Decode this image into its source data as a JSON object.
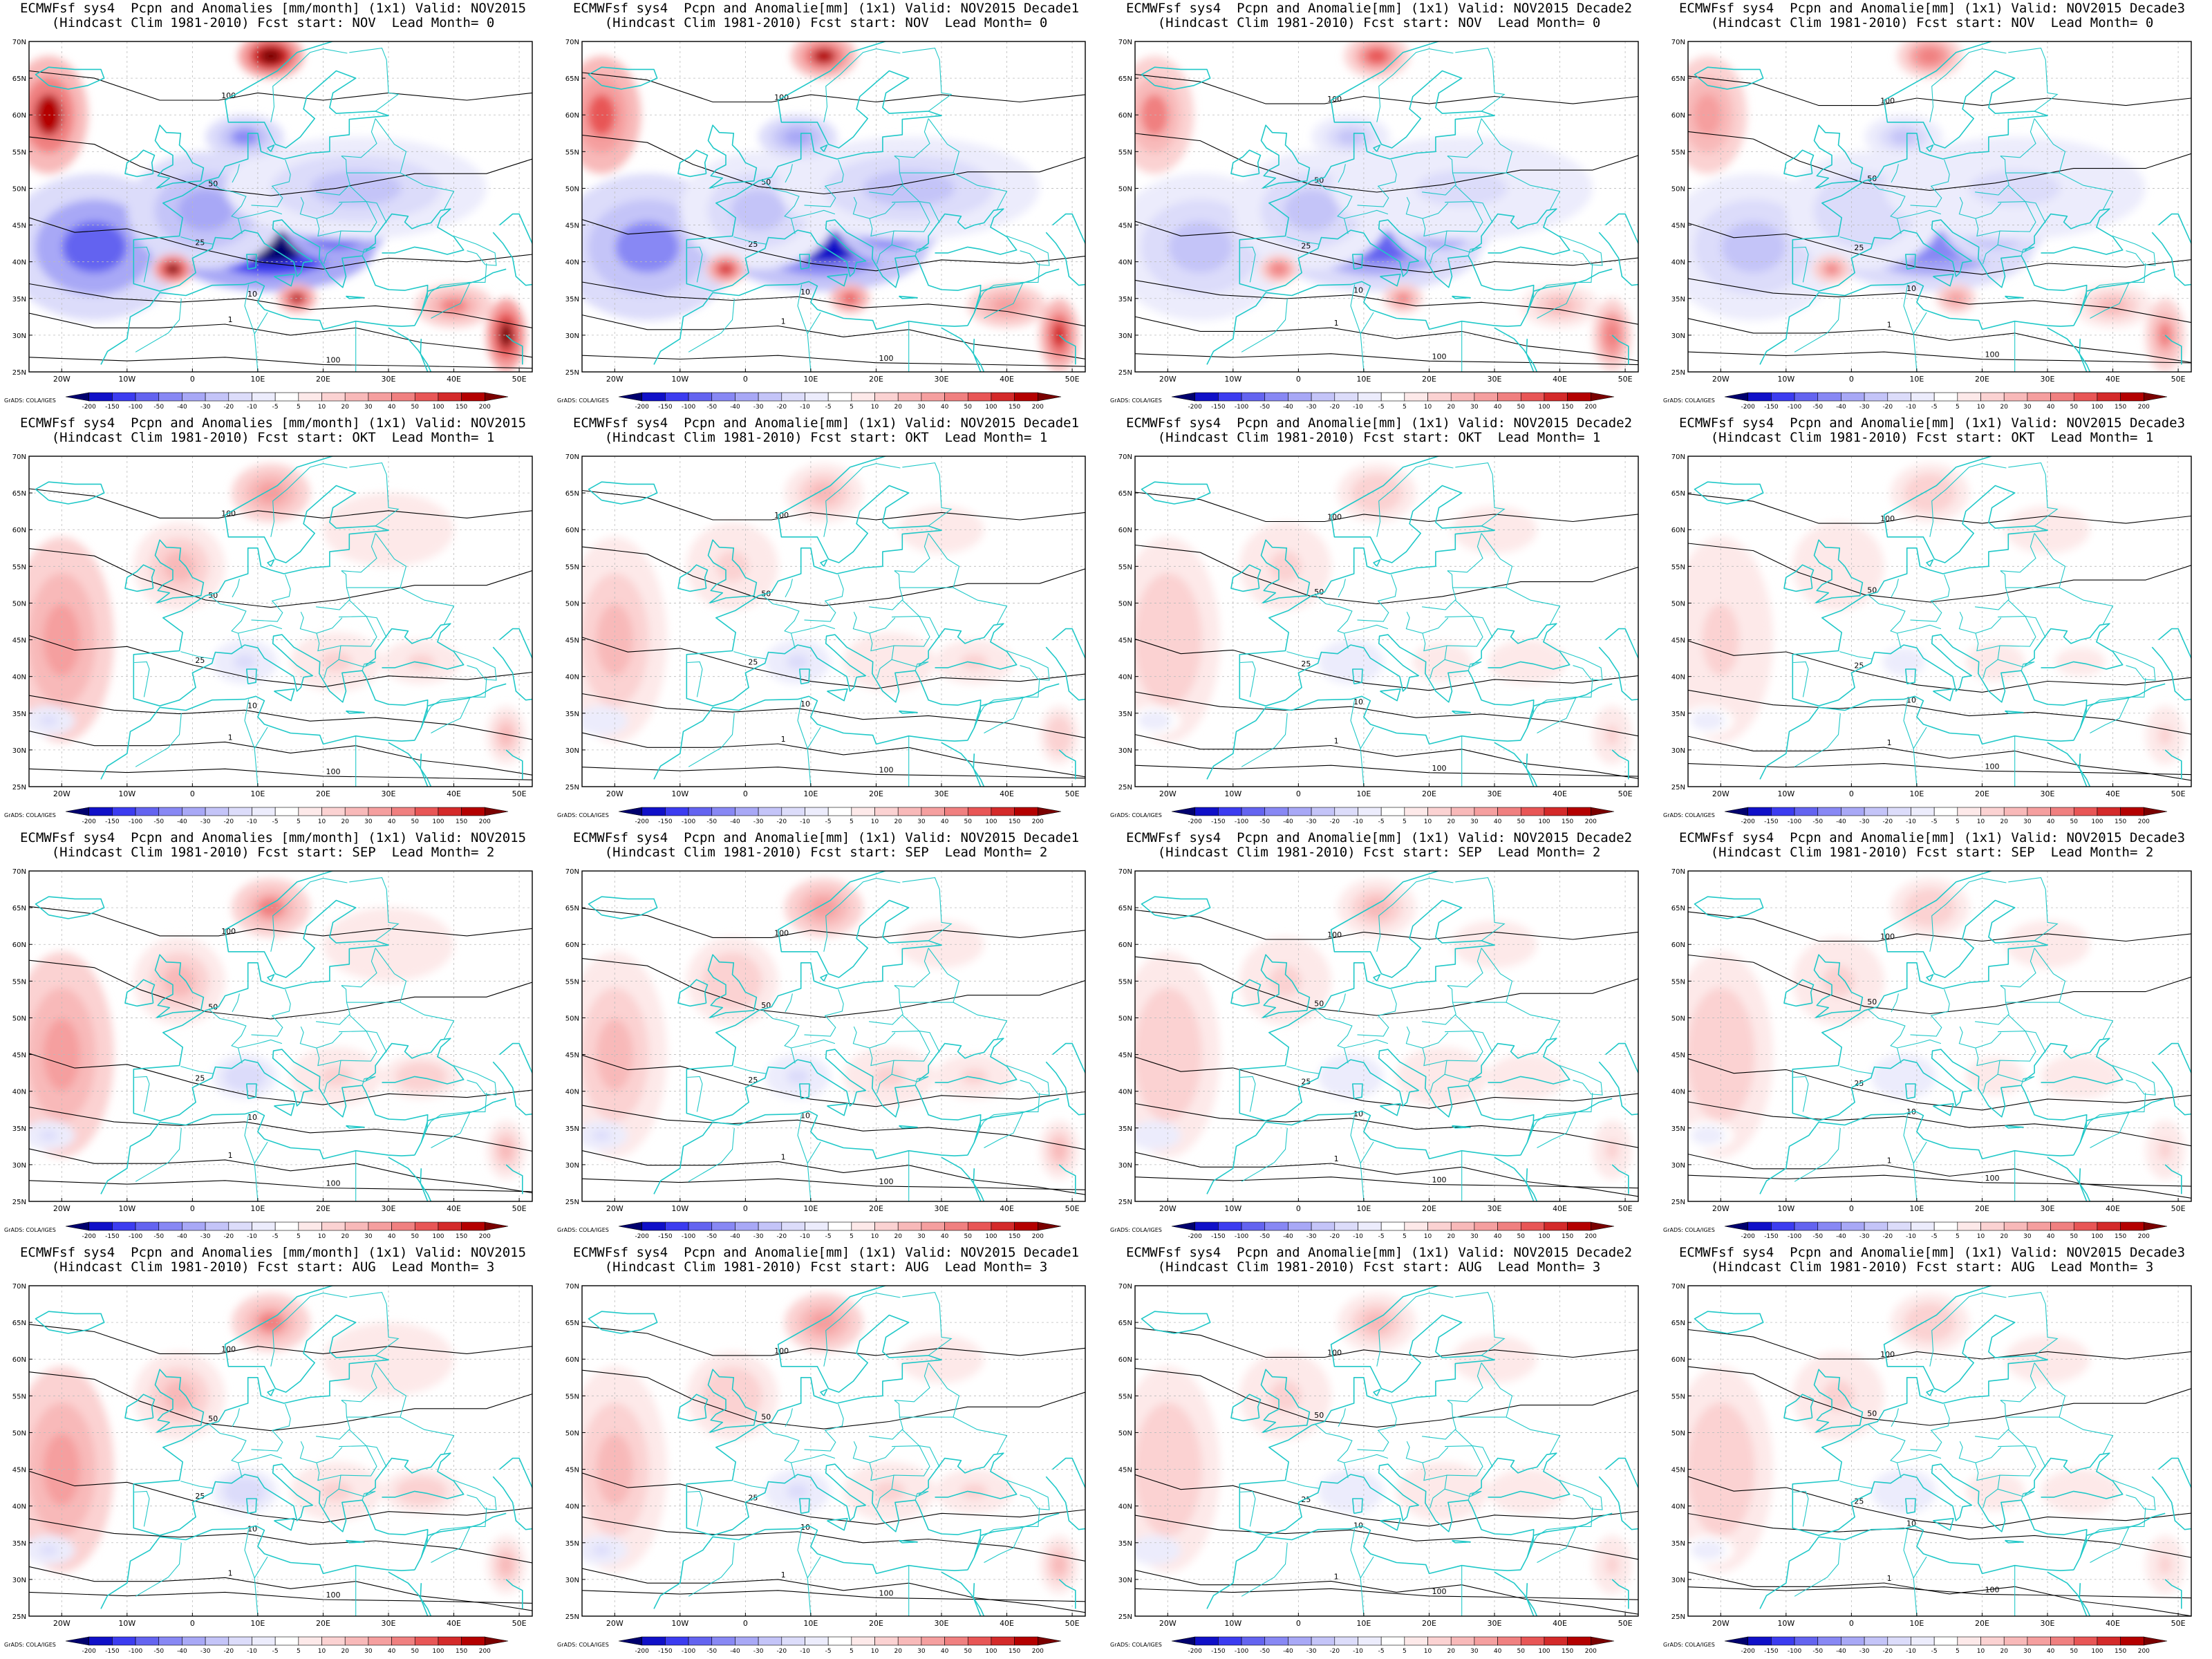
{
  "figure": {
    "colorbar_ticks": [
      "-200",
      "-150",
      "-100",
      "-50",
      "-40",
      "-30",
      "-20",
      "-10",
      "-5",
      "5",
      "10",
      "20",
      "30",
      "40",
      "50",
      "100",
      "150",
      "200"
    ],
    "colorbar_colors": [
      "#00006e",
      "#1010c8",
      "#3c3cf0",
      "#6464f0",
      "#8888f4",
      "#a8a8f6",
      "#c4c4f8",
      "#dcdcfa",
      "#ececfc",
      "#ffffff",
      "#fde9e9",
      "#fbd2d2",
      "#f8b9b9",
      "#f59f9f",
      "#f08080",
      "#e85656",
      "#d42a2a",
      "#b40000",
      "#7a0000"
    ],
    "lon_labels": [
      "20W",
      "10W",
      "0",
      "10E",
      "20E",
      "30E",
      "40E",
      "50E"
    ],
    "lat_labels": [
      "70N",
      "65N",
      "60N",
      "55N",
      "50N",
      "45N",
      "40N",
      "35N",
      "30N",
      "25N"
    ],
    "credit": "GrADS: COLA/IGES",
    "contour_labels": [
      "1",
      "10",
      "25",
      "50",
      "100"
    ],
    "coast_color": "#20c8c8",
    "contour_color": "#000000"
  },
  "rows": [
    {
      "fcst_start": "NOV",
      "lead_month": "0",
      "intensity": 1.0,
      "sign": -1
    },
    {
      "fcst_start": "OKT",
      "lead_month": "1",
      "intensity": 0.55,
      "sign": 1
    },
    {
      "fcst_start": "SEP",
      "lead_month": "2",
      "intensity": 0.6,
      "sign": 1
    },
    {
      "fcst_start": "AUG",
      "lead_month": "3",
      "intensity": 0.6,
      "sign": 1
    }
  ],
  "cols": [
    {
      "quantity": "Pcpn and Anomalies [mm/month]",
      "valid": "NOV2015"
    },
    {
      "quantity": "Pcpn and Anomalie[mm]",
      "valid": "NOV2015 Decade1"
    },
    {
      "quantity": "Pcpn and Anomalie[mm]",
      "valid": "NOV2015 Decade2"
    },
    {
      "quantity": "Pcpn and Anomalie[mm]",
      "valid": "NOV2015 Decade3"
    }
  ],
  "panels": [
    {
      "title1": "ECMWFsf sys4  Pcpn and Anomalies [mm/month] (1x1) Valid: NOV2015",
      "title2": "(Hindcast Clim 1981-2010) Fcst start: NOV  Lead Month= 0"
    },
    {
      "title1": "ECMWFsf sys4  Pcpn and Anomalie[mm] (1x1) Valid: NOV2015 Decade1",
      "title2": "(Hindcast Clim 1981-2010) Fcst start: NOV  Lead Month= 0"
    },
    {
      "title1": "ECMWFsf sys4  Pcpn and Anomalie[mm] (1x1) Valid: NOV2015 Decade2",
      "title2": "(Hindcast Clim 1981-2010) Fcst start: NOV  Lead Month= 0"
    },
    {
      "title1": "ECMWFsf sys4  Pcpn and Anomalie[mm] (1x1) Valid: NOV2015 Decade3",
      "title2": "(Hindcast Clim 1981-2010) Fcst start: NOV  Lead Month= 0"
    },
    {
      "title1": "ECMWFsf sys4  Pcpn and Anomalies [mm/month] (1x1) Valid: NOV2015",
      "title2": "(Hindcast Clim 1981-2010) Fcst start: OKT  Lead Month= 1"
    },
    {
      "title1": "ECMWFsf sys4  Pcpn and Anomalie[mm] (1x1) Valid: NOV2015 Decade1",
      "title2": "(Hindcast Clim 1981-2010) Fcst start: OKT  Lead Month= 1"
    },
    {
      "title1": "ECMWFsf sys4  Pcpn and Anomalie[mm] (1x1) Valid: NOV2015 Decade2",
      "title2": "(Hindcast Clim 1981-2010) Fcst start: OKT  Lead Month= 1"
    },
    {
      "title1": "ECMWFsf sys4  Pcpn and Anomalie[mm] (1x1) Valid: NOV2015 Decade3",
      "title2": "(Hindcast Clim 1981-2010) Fcst start: OKT  Lead Month= 1"
    },
    {
      "title1": "ECMWFsf sys4  Pcpn and Anomalies [mm/month] (1x1) Valid: NOV2015",
      "title2": "(Hindcast Clim 1981-2010) Fcst start: SEP  Lead Month= 2"
    },
    {
      "title1": "ECMWFsf sys4  Pcpn and Anomalie[mm] (1x1) Valid: NOV2015 Decade1",
      "title2": "(Hindcast Clim 1981-2010) Fcst start: SEP  Lead Month= 2"
    },
    {
      "title1": "ECMWFsf sys4  Pcpn and Anomalie[mm] (1x1) Valid: NOV2015 Decade2",
      "title2": "(Hindcast Clim 1981-2010) Fcst start: SEP  Lead Month= 2"
    },
    {
      "title1": "ECMWFsf sys4  Pcpn and Anomalie[mm] (1x1) Valid: NOV2015 Decade3",
      "title2": "(Hindcast Clim 1981-2010) Fcst start: SEP  Lead Month= 2"
    },
    {
      "title1": "ECMWFsf sys4  Pcpn and Anomalies [mm/month] (1x1) Valid: NOV2015",
      "title2": "(Hindcast Clim 1981-2010) Fcst start: AUG  Lead Month= 3"
    },
    {
      "title1": "ECMWFsf sys4  Pcpn and Anomalie[mm] (1x1) Valid: NOV2015 Decade1",
      "title2": "(Hindcast Clim 1981-2010) Fcst start: AUG  Lead Month= 3"
    },
    {
      "title1": "ECMWFsf sys4  Pcpn and Anomalie[mm] (1x1) Valid: NOV2015 Decade2",
      "title2": "(Hindcast Clim 1981-2010) Fcst start: AUG  Lead Month= 3"
    },
    {
      "title1": "ECMWFsf sys4  Pcpn and Anomalie[mm] (1x1) Valid: NOV2015 Decade3",
      "title2": "(Hindcast Clim 1981-2010) Fcst start: AUG  Lead Month= 3"
    }
  ]
}
